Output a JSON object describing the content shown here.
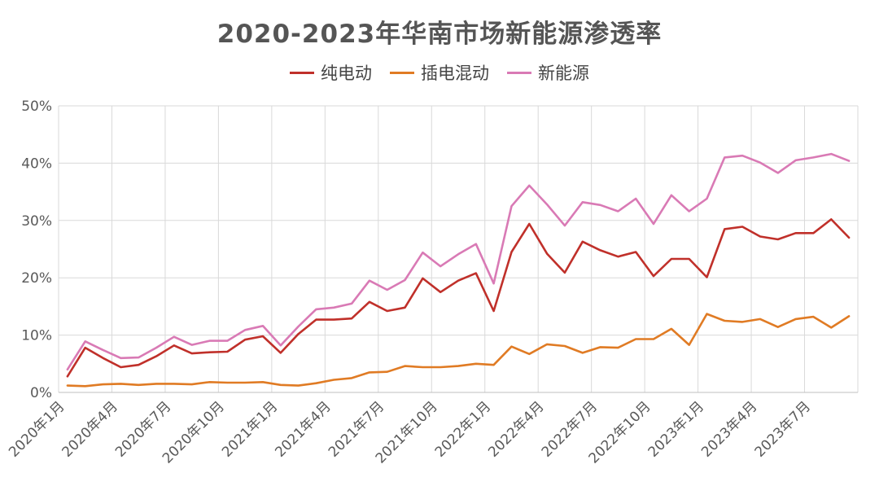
{
  "chart_data": {
    "type": "line",
    "title": "2020-2023年华南市场新能源渗透率",
    "xlabel": "",
    "ylabel": "",
    "ylim": [
      0,
      50
    ],
    "y_ticks": [
      "0%",
      "10%",
      "20%",
      "30%",
      "40%",
      "50%"
    ],
    "x_tick_labels": [
      "2020年1月",
      "2020年4月",
      "2020年7月",
      "2020年10月",
      "2021年1月",
      "2021年4月",
      "2021年7月",
      "2021年10月",
      "2022年1月",
      "2022年4月",
      "2022年7月",
      "2022年10月",
      "2023年1月",
      "2023年4月",
      "2023年7月"
    ],
    "x": [
      "2020-01",
      "2020-02",
      "2020-03",
      "2020-04",
      "2020-05",
      "2020-06",
      "2020-07",
      "2020-08",
      "2020-09",
      "2020-10",
      "2020-11",
      "2020-12",
      "2021-01",
      "2021-02",
      "2021-03",
      "2021-04",
      "2021-05",
      "2021-06",
      "2021-07",
      "2021-08",
      "2021-09",
      "2021-10",
      "2021-11",
      "2021-12",
      "2022-01",
      "2022-02",
      "2022-03",
      "2022-04",
      "2022-05",
      "2022-06",
      "2022-07",
      "2022-08",
      "2022-09",
      "2022-10",
      "2022-11",
      "2022-12",
      "2023-01",
      "2023-02",
      "2023-03",
      "2023-04",
      "2023-05",
      "2023-06",
      "2023-07",
      "2023-08",
      "2023-09"
    ],
    "grid": true,
    "legend_position": "top",
    "series": [
      {
        "name": "纯电动",
        "color": "#c0302a",
        "values": [
          2.8,
          7.8,
          6.0,
          4.4,
          4.8,
          6.3,
          8.2,
          6.8,
          7.0,
          7.1,
          9.2,
          9.8,
          6.9,
          10.2,
          12.7,
          12.7,
          12.9,
          15.8,
          14.2,
          14.8,
          19.9,
          17.5,
          19.5,
          20.8,
          14.2,
          24.5,
          29.4,
          24.2,
          20.9,
          26.3,
          24.8,
          23.7,
          24.5,
          20.3,
          23.3,
          23.3,
          20.1,
          28.5,
          28.9,
          27.2,
          26.7,
          27.8,
          27.8,
          30.2,
          27.0
        ]
      },
      {
        "name": "插电混动",
        "color": "#e07b24",
        "values": [
          1.2,
          1.1,
          1.4,
          1.5,
          1.3,
          1.5,
          1.5,
          1.4,
          1.8,
          1.7,
          1.7,
          1.8,
          1.3,
          1.2,
          1.6,
          2.2,
          2.5,
          3.5,
          3.6,
          4.6,
          4.4,
          4.4,
          4.6,
          5.0,
          4.8,
          8.0,
          6.7,
          8.4,
          8.1,
          6.9,
          7.9,
          7.8,
          9.3,
          9.3,
          11.1,
          8.3,
          13.7,
          12.5,
          12.3,
          12.8,
          11.4,
          12.8,
          13.2,
          11.3,
          13.3
        ]
      },
      {
        "name": "新能源",
        "color": "#d97ab5",
        "values": [
          4.0,
          8.9,
          7.4,
          6.0,
          6.1,
          7.8,
          9.7,
          8.3,
          9.0,
          9.0,
          10.9,
          11.6,
          8.2,
          11.5,
          14.5,
          14.8,
          15.5,
          19.5,
          17.9,
          19.6,
          24.4,
          22.0,
          24.1,
          25.9,
          19.0,
          32.5,
          36.1,
          32.8,
          29.1,
          33.2,
          32.7,
          31.6,
          33.8,
          29.4,
          34.4,
          31.6,
          33.8,
          41.0,
          41.3,
          40.1,
          38.3,
          40.5,
          41.0,
          41.6,
          40.4
        ]
      }
    ]
  }
}
